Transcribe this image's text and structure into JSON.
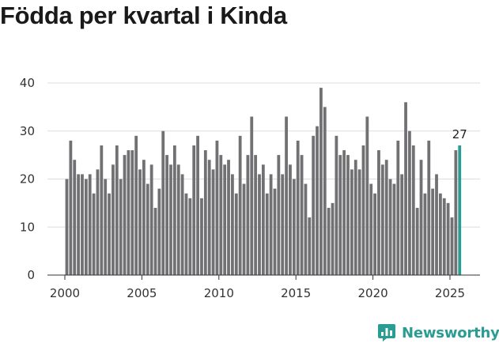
{
  "chart_data": {
    "type": "bar",
    "title": "Födda per kvartal i Kinda",
    "xlabel": "",
    "ylabel": "",
    "ylim": [
      0,
      40
    ],
    "yticks": [
      0,
      10,
      20,
      30,
      40
    ],
    "xlim": [
      2000,
      2025.75
    ],
    "xticks": [
      2000,
      2005,
      2010,
      2015,
      2020,
      2025
    ],
    "grid": true,
    "x": [
      2000.0,
      2000.25,
      2000.5,
      2000.75,
      2001.0,
      2001.25,
      2001.5,
      2001.75,
      2002.0,
      2002.25,
      2002.5,
      2002.75,
      2003.0,
      2003.25,
      2003.5,
      2003.75,
      2004.0,
      2004.25,
      2004.5,
      2004.75,
      2005.0,
      2005.25,
      2005.5,
      2005.75,
      2006.0,
      2006.25,
      2006.5,
      2006.75,
      2007.0,
      2007.25,
      2007.5,
      2007.75,
      2008.0,
      2008.25,
      2008.5,
      2008.75,
      2009.0,
      2009.25,
      2009.5,
      2009.75,
      2010.0,
      2010.25,
      2010.5,
      2010.75,
      2011.0,
      2011.25,
      2011.5,
      2011.75,
      2012.0,
      2012.25,
      2012.5,
      2012.75,
      2013.0,
      2013.25,
      2013.5,
      2013.75,
      2014.0,
      2014.25,
      2014.5,
      2014.75,
      2015.0,
      2015.25,
      2015.5,
      2015.75,
      2016.0,
      2016.25,
      2016.5,
      2016.75,
      2017.0,
      2017.25,
      2017.5,
      2017.75,
      2018.0,
      2018.25,
      2018.5,
      2018.75,
      2019.0,
      2019.25,
      2019.5,
      2019.75,
      2020.0,
      2020.25,
      2020.5,
      2020.75,
      2021.0,
      2021.25,
      2021.5,
      2021.75,
      2022.0,
      2022.25,
      2022.5,
      2022.75,
      2023.0,
      2023.25,
      2023.5,
      2023.75,
      2024.0,
      2024.25,
      2024.5,
      2024.75,
      2025.0,
      2025.25,
      2025.5
    ],
    "values": [
      20,
      28,
      24,
      21,
      21,
      20,
      21,
      17,
      22,
      27,
      20,
      17,
      23,
      27,
      20,
      25,
      26,
      26,
      29,
      22,
      24,
      19,
      23,
      14,
      18,
      30,
      25,
      23,
      27,
      23,
      21,
      17,
      16,
      27,
      29,
      16,
      26,
      24,
      22,
      28,
      25,
      23,
      24,
      21,
      17,
      29,
      19,
      25,
      33,
      25,
      21,
      23,
      17,
      21,
      18,
      25,
      21,
      33,
      23,
      20,
      28,
      25,
      19,
      12,
      29,
      31,
      39,
      35,
      14,
      15,
      29,
      25,
      26,
      25,
      22,
      24,
      22,
      27,
      33,
      19,
      17,
      26,
      23,
      24,
      20,
      19,
      28,
      21,
      36,
      30,
      27,
      14,
      24,
      17,
      28,
      18,
      21,
      17,
      16,
      15,
      12,
      26,
      27
    ],
    "highlight_index": 102,
    "highlight_label": "27",
    "colors": {
      "bar": "#717174",
      "highlight": "#2a9d92",
      "grid": "#dddddd",
      "axis": "#333333"
    }
  },
  "branding": {
    "name": "Newsworthy",
    "color": "#2a9d92",
    "icon": "bar-chart-badge-icon"
  }
}
